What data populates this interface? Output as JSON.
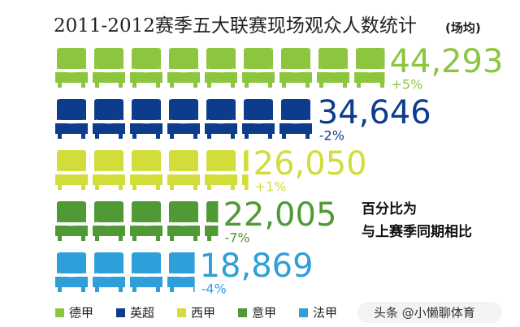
{
  "chart_data": {
    "type": "pictogram-bar",
    "orientation": "horizontal",
    "title": "2011-2012赛季五大联赛现场观众人数统计",
    "subtitle": "(场均)",
    "categories": [
      "德甲",
      "英超",
      "西甲",
      "意甲",
      "法甲"
    ],
    "values": [
      44293,
      34646,
      26050,
      22005,
      18869
    ],
    "value_labels": [
      "44,293",
      "34,646",
      "26,050",
      "22,005",
      "18,869"
    ],
    "changes": [
      "+5%",
      "-2%",
      "+1%",
      "-7%",
      "-4%"
    ],
    "colors": [
      "#8cc63f",
      "#0d3c8c",
      "#d2dc3a",
      "#4f9a35",
      "#2e9fd8"
    ],
    "annotation": [
      "百分比为",
      "与上赛季同期相比"
    ],
    "legend": true
  },
  "watermark": "头条 @小懒聊体育"
}
